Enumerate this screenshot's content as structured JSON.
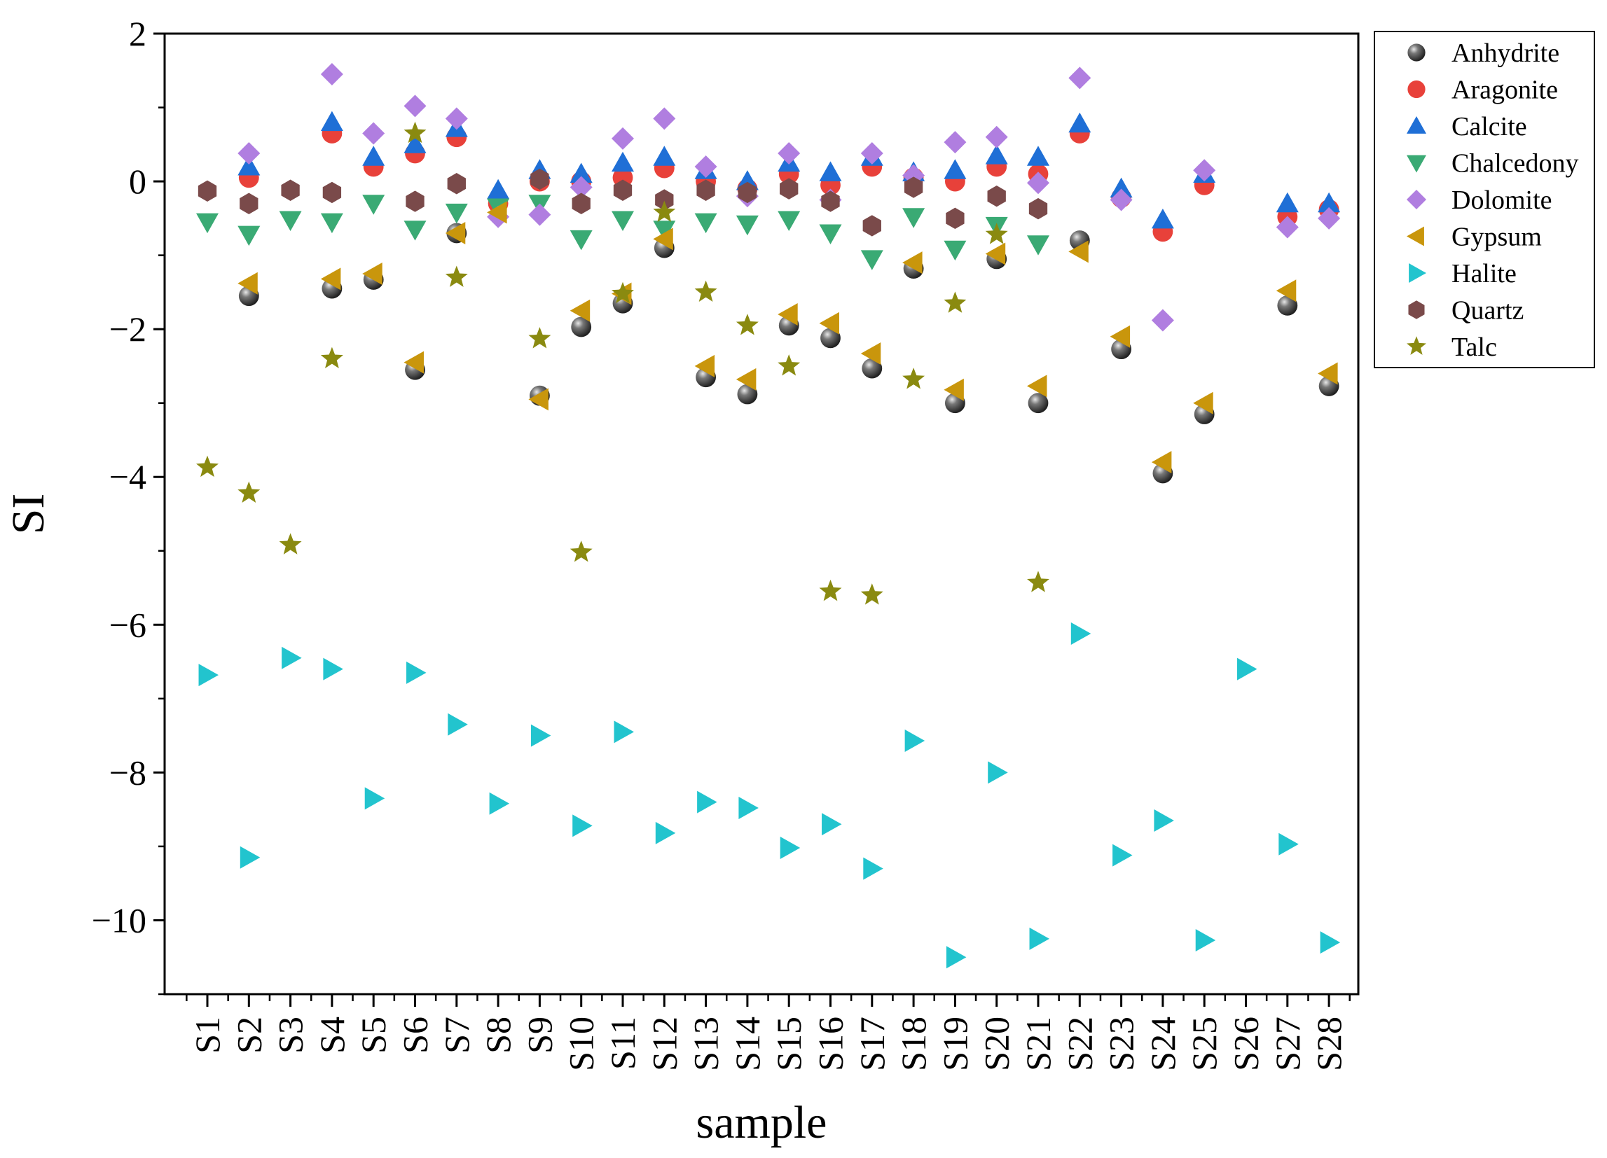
{
  "chart_data": {
    "type": "scatter",
    "xlabel": "sample",
    "ylabel": "SI",
    "ylim": [
      -11,
      2
    ],
    "yticks": [
      2,
      0,
      -2,
      -4,
      -6,
      -8,
      -10
    ],
    "ytick_labels": [
      "2",
      "0",
      "−2",
      "−4",
      "−6",
      "−8",
      "−10"
    ],
    "legend_position": "top-right",
    "grid": false,
    "categories": [
      "S1",
      "S2",
      "S3",
      "S4",
      "S5",
      "S6",
      "S7",
      "S8",
      "S9",
      "S10",
      "S11",
      "S12",
      "S13",
      "S14",
      "S15",
      "S16",
      "S17",
      "S18",
      "S19",
      "S20",
      "S21",
      "S22",
      "S23",
      "S24",
      "S25",
      "S26",
      "S27",
      "S28"
    ],
    "series": [
      {
        "name": "Anhydrite",
        "marker": "sphere",
        "color": "#555555",
        "values": [
          null,
          -1.55,
          null,
          -1.45,
          -1.33,
          -2.55,
          -0.7,
          null,
          -2.9,
          -1.97,
          -1.65,
          -0.9,
          -2.65,
          -2.88,
          -1.95,
          -2.12,
          -2.53,
          -1.18,
          -3.0,
          -1.05,
          -3.0,
          -0.8,
          -2.27,
          -3.95,
          -3.15,
          null,
          -1.68,
          -2.77
        ]
      },
      {
        "name": "Aragonite",
        "marker": "circle",
        "color": "#e8413a",
        "values": [
          null,
          0.05,
          null,
          0.65,
          0.2,
          0.38,
          0.6,
          -0.3,
          0.0,
          0.0,
          0.05,
          0.18,
          0.0,
          -0.1,
          0.1,
          -0.05,
          0.2,
          0.05,
          0.0,
          0.2,
          0.1,
          0.65,
          -0.22,
          -0.68,
          -0.05,
          null,
          -0.48,
          -0.38
        ]
      },
      {
        "name": "Calcite",
        "marker": "triangle-up",
        "color": "#1f6fd6",
        "values": [
          null,
          0.2,
          null,
          0.8,
          0.33,
          0.5,
          0.72,
          -0.12,
          0.15,
          0.1,
          0.25,
          0.33,
          0.15,
          0.0,
          0.25,
          0.12,
          0.33,
          0.12,
          0.15,
          0.35,
          0.33,
          0.78,
          -0.1,
          -0.52,
          0.1,
          null,
          -0.3,
          -0.3
        ]
      },
      {
        "name": "Chalcedony",
        "marker": "triangle-down",
        "color": "#3aaa74",
        "values": [
          -0.55,
          -0.72,
          -0.52,
          -0.55,
          -0.3,
          -0.65,
          -0.42,
          -0.35,
          -0.3,
          -0.78,
          -0.52,
          -0.65,
          -0.55,
          -0.58,
          -0.52,
          -0.7,
          -1.05,
          -0.48,
          -0.92,
          -0.6,
          -0.85,
          null,
          null,
          null,
          null,
          null,
          null,
          null
        ]
      },
      {
        "name": "Dolomite",
        "marker": "diamond",
        "color": "#b07ee0",
        "values": [
          null,
          0.38,
          null,
          1.45,
          0.65,
          1.02,
          0.85,
          -0.48,
          -0.45,
          -0.08,
          0.58,
          0.85,
          0.2,
          -0.2,
          0.38,
          -0.25,
          0.38,
          0.08,
          0.53,
          0.6,
          -0.02,
          1.4,
          -0.25,
          -1.88,
          0.15,
          null,
          -0.62,
          -0.5
        ]
      },
      {
        "name": "Gypsum",
        "marker": "triangle-left",
        "color": "#c9960c",
        "values": [
          null,
          -1.38,
          null,
          -1.32,
          -1.25,
          -2.45,
          -0.7,
          -0.42,
          -2.95,
          -1.75,
          -1.52,
          -0.78,
          -2.5,
          -2.68,
          -1.8,
          -1.92,
          -2.33,
          -1.1,
          -2.82,
          -0.98,
          -2.77,
          -0.95,
          -2.1,
          -3.8,
          -3.0,
          null,
          -1.48,
          -2.6
        ]
      },
      {
        "name": "Halite",
        "marker": "triangle-right",
        "color": "#22c4ce",
        "values": [
          -6.68,
          -9.15,
          -6.45,
          -6.6,
          -8.35,
          -6.65,
          -7.35,
          -8.42,
          -7.5,
          -8.72,
          -7.45,
          -8.82,
          -8.4,
          -8.48,
          -9.02,
          -8.7,
          -9.3,
          -7.57,
          -10.5,
          -8.0,
          -10.25,
          -6.12,
          -9.12,
          -8.65,
          -10.27,
          -6.6,
          -8.97,
          -10.3
        ]
      },
      {
        "name": "Quartz",
        "marker": "hexagon",
        "color": "#7a4a4a",
        "values": [
          -0.13,
          -0.3,
          -0.12,
          -0.15,
          null,
          -0.27,
          -0.03,
          null,
          0.03,
          -0.3,
          -0.12,
          -0.25,
          -0.12,
          -0.15,
          -0.1,
          -0.27,
          -0.6,
          -0.08,
          -0.5,
          -0.2,
          -0.37,
          null,
          null,
          null,
          null,
          null,
          null,
          null
        ]
      },
      {
        "name": "Talc",
        "marker": "star",
        "color": "#8a8a10",
        "values": [
          -3.87,
          -4.22,
          -4.92,
          -2.4,
          null,
          0.65,
          -1.3,
          null,
          -2.13,
          -5.02,
          -1.52,
          -0.42,
          -1.5,
          -1.95,
          -2.5,
          -5.55,
          -5.6,
          -2.68,
          -1.65,
          -0.72,
          -5.43,
          null,
          null,
          null,
          null,
          null,
          null,
          null
        ]
      }
    ]
  }
}
